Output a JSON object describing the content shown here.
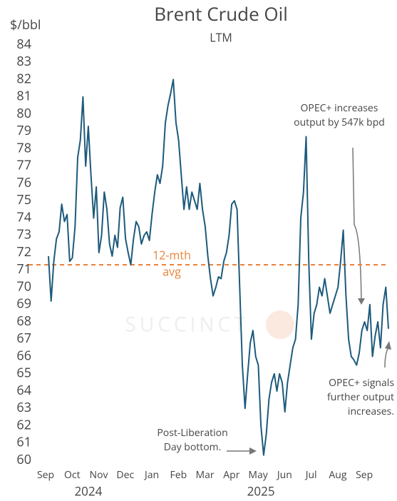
{
  "chart_data": {
    "type": "line",
    "title": "Brent Crude Oil",
    "subtitle": "LTM",
    "y_label": "$/bbl",
    "watermark": "SUCCINCT",
    "categories": [
      "Sep",
      null,
      null,
      null,
      null,
      null,
      null,
      null,
      null,
      null,
      "Oct",
      null,
      null,
      null,
      null,
      null,
      null,
      null,
      null,
      null,
      "Nov",
      null,
      null,
      null,
      null,
      null,
      null,
      null,
      null,
      null,
      "Dec",
      null,
      null,
      null,
      null,
      null,
      null,
      null,
      null,
      null,
      "Jan",
      null,
      null,
      null,
      null,
      null,
      null,
      null,
      null,
      null,
      "Feb",
      null,
      null,
      null,
      null,
      null,
      null,
      null,
      null,
      null,
      "Mar",
      null,
      null,
      null,
      null,
      null,
      null,
      null,
      null,
      null,
      "Apr",
      null,
      null,
      null,
      null,
      null,
      null,
      null,
      null,
      null,
      "May",
      null,
      null,
      null,
      null,
      null,
      null,
      null,
      null,
      null,
      "Jun",
      null,
      null,
      null,
      null,
      null,
      null,
      null,
      null,
      null,
      "Jul",
      null,
      null,
      null,
      null,
      null,
      null,
      null,
      null,
      null,
      "Aug",
      null,
      null,
      null,
      null,
      null,
      null,
      null,
      null,
      null,
      "Sep",
      null,
      null,
      null,
      null,
      null,
      null,
      null,
      null
    ],
    "x_groups": [
      "2024",
      "2025"
    ],
    "series": [
      {
        "name": "Brent",
        "color": "#1d5a7c",
        "values": [
          71.8,
          69.2,
          71.5,
          72.8,
          73.2,
          74.8,
          73.8,
          74.2,
          71.5,
          71.7,
          73.5,
          77.5,
          78.5,
          81.0,
          77.0,
          79.3,
          76.5,
          74.0,
          75.8,
          72.0,
          73.0,
          75.5,
          74.5,
          72.5,
          71.8,
          73.0,
          72.3,
          74.6,
          75.2,
          72.8,
          72.0,
          71.3,
          72.8,
          73.8,
          73.5,
          72.5,
          73.0,
          73.2,
          72.7,
          74.2,
          75.5,
          76.5,
          76.0,
          77.0,
          79.5,
          80.5,
          81.2,
          82.0,
          79.5,
          78.5,
          76.5,
          74.5,
          75.8,
          74.5,
          75.5,
          75.0,
          74.5,
          76.0,
          74.5,
          73.5,
          71.8,
          70.5,
          69.5,
          70.0,
          70.6,
          70.5,
          71.5,
          72.0,
          73.0,
          74.8,
          75.0,
          74.5,
          70.0,
          65.5,
          63.0,
          65.0,
          66.8,
          67.5,
          66.0,
          65.5,
          62.0,
          60.3,
          61.5,
          63.5,
          64.5,
          65.0,
          64.0,
          65.0,
          64.5,
          62.8,
          64.5,
          65.5,
          66.5,
          67.0,
          69.0,
          74.0,
          75.5,
          78.7,
          71.5,
          67.0,
          68.5,
          69.0,
          70.0,
          69.5,
          70.5,
          69.5,
          68.5,
          69.0,
          69.5,
          70.0,
          71.5,
          73.3,
          69.5,
          67.0,
          66.0,
          65.8,
          65.5,
          66.2,
          67.5,
          68.0,
          67.5,
          69.0,
          66.0,
          67.2,
          68.0,
          66.5,
          69.0,
          70.0,
          67.6
        ]
      }
    ],
    "average": {
      "value": 71.3,
      "label": [
        "12-mth",
        "avg"
      ],
      "color": "#e8823a"
    },
    "annotations": [
      {
        "text": [
          "OPEC+ increases",
          "output by 547k bpd"
        ]
      },
      {
        "text": [
          "Post-Liberation",
          "Day bottom."
        ]
      },
      {
        "text": [
          "OPEC+ signals",
          "further output",
          "increases."
        ]
      }
    ],
    "ylim": [
      60,
      84
    ],
    "yticks": [
      60,
      61,
      62,
      63,
      64,
      65,
      66,
      67,
      68,
      69,
      70,
      71,
      72,
      73,
      74,
      75,
      76,
      77,
      78,
      79,
      80,
      81,
      82,
      83,
      84
    ]
  }
}
